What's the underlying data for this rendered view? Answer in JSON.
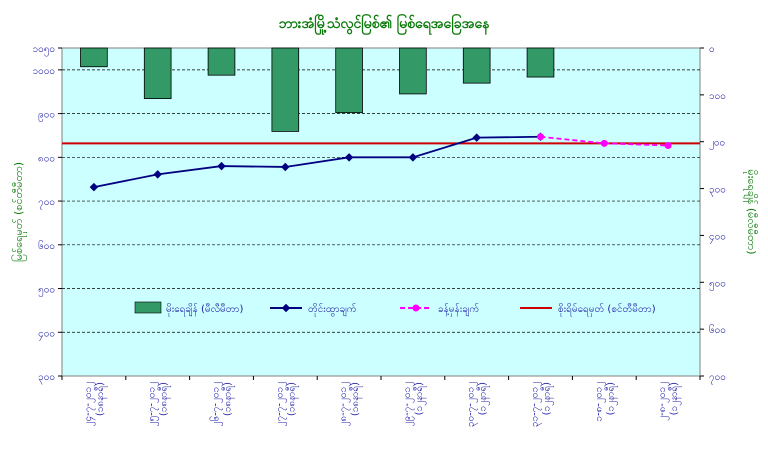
{
  "chart_data": {
    "type": "bar+line",
    "title": "ဘားအံမြို့သံလွင်မြစ်၏ မြစ်ရေအခြေအနေ",
    "ylabel_left": "မြစ်ရေမှတ် (စင်တီမီတာ)",
    "ylabel_right": "မိုးရေချိန် (မီလီမီတာ)",
    "xlabel": "",
    "left_axis": {
      "min": 300,
      "max": 1050,
      "step": 100,
      "tick_labels": [
        "၃၀၀",
        "၄၀၀",
        "၅၀၀",
        "၆၀၀",
        "၇၀၀",
        "၈၀၀",
        "၉၀၀",
        "၁၀၀၀",
        "၁၀၅၀"
      ]
    },
    "right_axis": {
      "min": 0,
      "max": 700,
      "inverted": true,
      "step": 100,
      "tick_labels": [
        "၀",
        "၁၀၀",
        "၂၀၀",
        "၃၀၀",
        "၄၀၀",
        "၅၀၀",
        "၆၀၀",
        "၇၀၀"
      ]
    },
    "categories": [
      [
        "၂၄-၇-၂၀၁၂",
        "(၁၈နာရီ)"
      ],
      [
        "၂၅-၇-၂၀၁၂",
        "(၁၈နာရီ)"
      ],
      [
        "၂၆-၇-၂၀၁၂",
        "(၁၈နာရီ)"
      ],
      [
        "၂၇-၇-၂၀၁၂",
        "(၁၈နာရီ)"
      ],
      [
        "၂၈-၇-၂၀၁၂",
        "(၁၈နာရီ)"
      ],
      [
        "၂၉-၇-၂၀၁၂",
        "(၁၂နာရီ)"
      ],
      [
        "၃၀-၇-၂၀၁၂",
        "(၁၂နာရီ)"
      ],
      [
        "၃၁-၇-၂၀၁၂",
        "(၁၂နာရီ)"
      ],
      [
        "၁-၈-၂၀၁၂",
        "(၁၂နာရီ)"
      ],
      [
        "၂-၈-၂၀၁၂",
        "(၁၂နာရီ)"
      ]
    ],
    "series": [
      {
        "name": "မိုးရေချိန် (မီလီမီတာ)",
        "kind": "bar",
        "axis": "right",
        "color": "#339966",
        "values": [
          40,
          108,
          58,
          178,
          138,
          98,
          75,
          62,
          null,
          null
        ]
      },
      {
        "name": "တိုင်းထွာချက်",
        "kind": "line",
        "axis": "left",
        "color": "#000080",
        "values": [
          732,
          761,
          780,
          778,
          800,
          800,
          845,
          847,
          null,
          null
        ]
      },
      {
        "name": "ခန့်မှန်းချက်",
        "kind": "line-dashed",
        "axis": "left",
        "color": "#ff00ff",
        "values": [
          null,
          null,
          null,
          null,
          null,
          null,
          null,
          847,
          832,
          827
        ]
      },
      {
        "name": "စိုးရိမ်ရေမှတ် (စင်တီမီတာ)",
        "kind": "hline",
        "axis": "left",
        "color": "#cc0000",
        "value": 832
      }
    ],
    "grid": true,
    "legend_position": "center",
    "plot_background": "#ccffff"
  }
}
